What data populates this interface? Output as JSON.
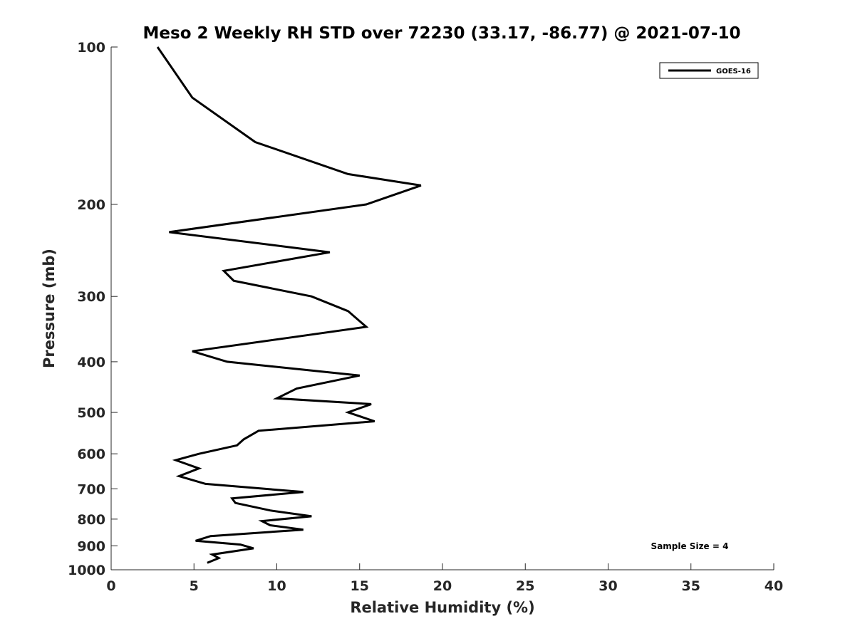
{
  "chart_data": {
    "type": "line",
    "title": "Meso 2 Weekly RH STD over 72230 (33.17, -86.77) @ 2021-07-10",
    "xlabel": "Relative Humidity (%)",
    "ylabel": "Pressure (mb)",
    "xlim": [
      0,
      40
    ],
    "ylim": [
      100,
      1000
    ],
    "yscale": "log",
    "y_reversed": true,
    "xticks": [
      0,
      5,
      10,
      15,
      20,
      25,
      30,
      35,
      40
    ],
    "yticks": [
      100,
      200,
      300,
      400,
      500,
      600,
      700,
      800,
      900,
      1000
    ],
    "grid": false,
    "legend_position": "top-right",
    "series": [
      {
        "name": "GOES-16",
        "color": "#000000",
        "points": [
          [
            2.8,
            100
          ],
          [
            4.9,
            125
          ],
          [
            8.7,
            152
          ],
          [
            14.3,
            175
          ],
          [
            18.7,
            184
          ],
          [
            15.4,
            200
          ],
          [
            3.5,
            226
          ],
          [
            13.2,
            247
          ],
          [
            6.8,
            268
          ],
          [
            7.4,
            280
          ],
          [
            12.1,
            300
          ],
          [
            14.3,
            320
          ],
          [
            15.4,
            343
          ],
          [
            10.7,
            360
          ],
          [
            4.9,
            382
          ],
          [
            7.0,
            400
          ],
          [
            15.0,
            425
          ],
          [
            11.2,
            450
          ],
          [
            10.0,
            470
          ],
          [
            15.7,
            482
          ],
          [
            14.3,
            500
          ],
          [
            15.9,
            520
          ],
          [
            8.9,
            542
          ],
          [
            8.0,
            563
          ],
          [
            7.6,
            578
          ],
          [
            5.3,
            600
          ],
          [
            3.9,
            617
          ],
          [
            5.3,
            640
          ],
          [
            4.1,
            662
          ],
          [
            5.7,
            685
          ],
          [
            11.6,
            710
          ],
          [
            7.3,
            730
          ],
          [
            7.5,
            745
          ],
          [
            9.6,
            770
          ],
          [
            12.1,
            790
          ],
          [
            9.1,
            807
          ],
          [
            9.6,
            822
          ],
          [
            11.6,
            838
          ],
          [
            6.0,
            862
          ],
          [
            5.1,
            880
          ],
          [
            7.8,
            895
          ],
          [
            8.6,
            910
          ],
          [
            6.1,
            935
          ],
          [
            6.5,
            950
          ],
          [
            5.8,
            970
          ]
        ]
      }
    ],
    "annotations": [
      "Sample Size = 4"
    ]
  }
}
